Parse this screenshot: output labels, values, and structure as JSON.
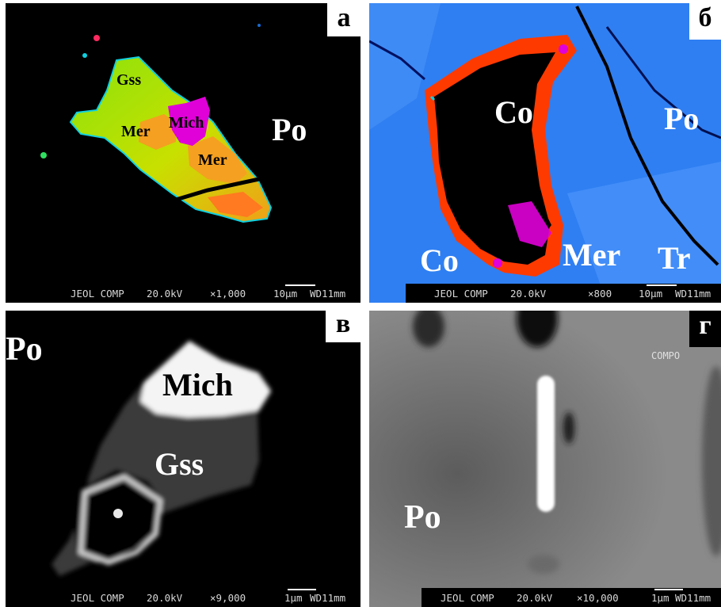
{
  "panels": {
    "a": {
      "letter": "а",
      "labels": {
        "gss": "Gss",
        "mer1": "Mer",
        "mich": "Mich",
        "mer2": "Mer",
        "po": "Po"
      },
      "info": {
        "detector": "JEOL COMP",
        "voltage": "20.0kV",
        "mag": "×1,000",
        "scale": "10μm",
        "wd": "WD11mm"
      }
    },
    "b": {
      "letter": "б",
      "labels": {
        "co1": "Co",
        "po": "Po",
        "co2": "Co",
        "mer": "Mer",
        "tr": "Tr"
      },
      "info": {
        "detector": "JEOL COMP",
        "voltage": "20.0kV",
        "mag": "×800",
        "scale": "10μm",
        "wd": "WD11mm"
      }
    },
    "c": {
      "letter": "в",
      "labels": {
        "po": "Po",
        "mich": "Mich",
        "gss": "Gss"
      },
      "info": {
        "detector": "JEOL COMP",
        "voltage": "20.0kV",
        "mag": "×9,000",
        "scale": "1μm",
        "wd": "WD11mm"
      }
    },
    "d": {
      "letter": "г",
      "compo": "COMPO",
      "labels": {
        "po": "Po"
      },
      "info": {
        "detector": "JEOL COMP",
        "voltage": "20.0kV",
        "mag": "×10,000",
        "scale": "1μm",
        "wd": "WD11mm"
      }
    }
  },
  "colors": {
    "gss": "#7ee00a",
    "mer": "#f5a020",
    "mich": "#e000d8",
    "po_blue": "#2e7df0",
    "co_red": "#ff3a00"
  }
}
